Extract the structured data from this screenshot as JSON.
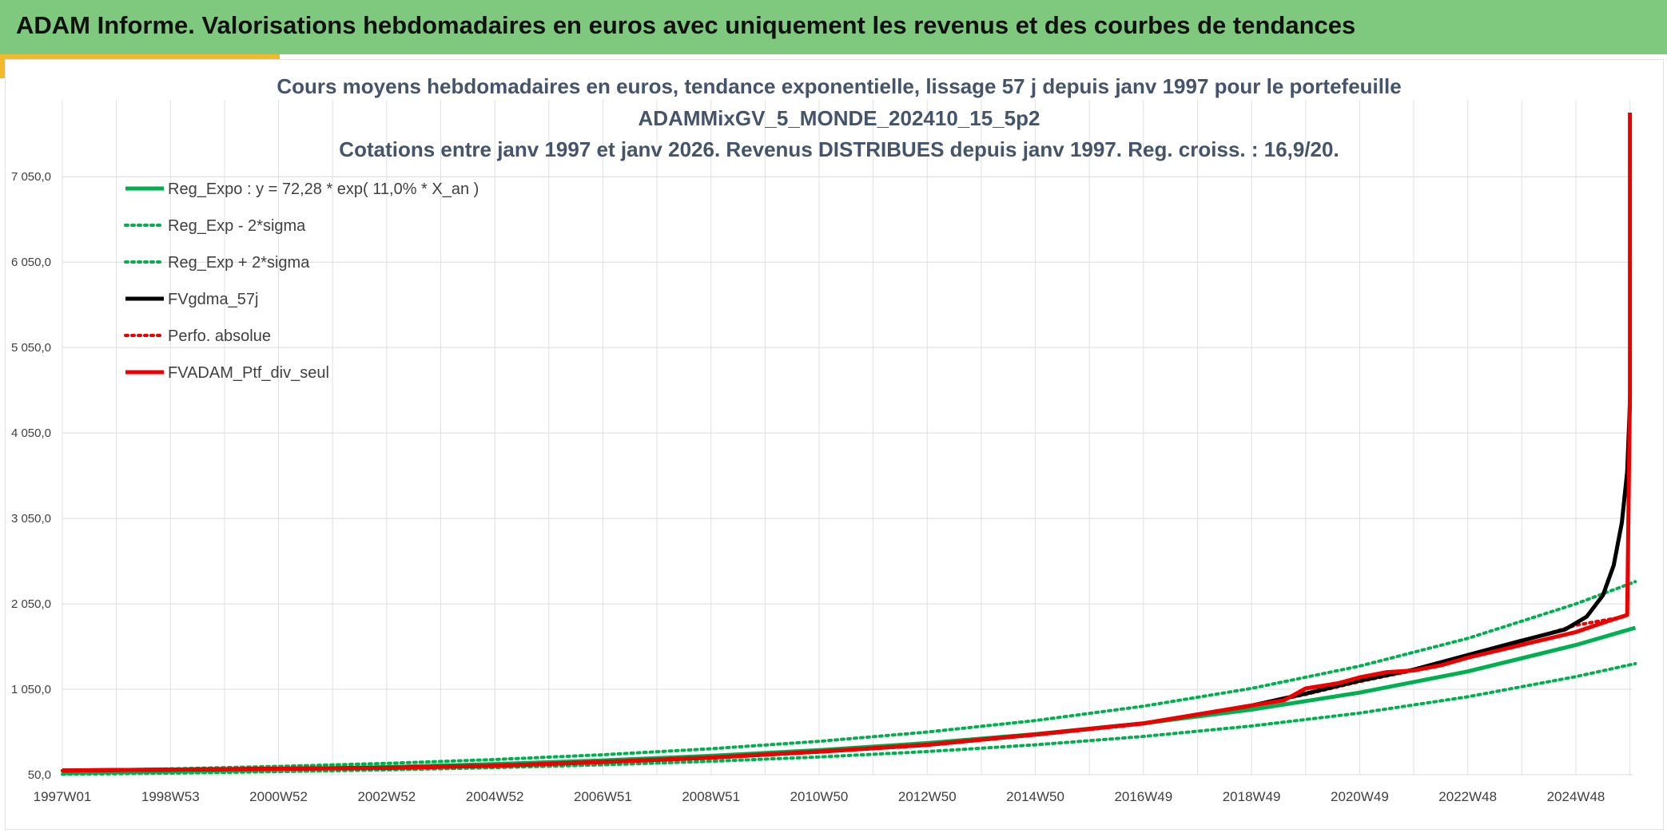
{
  "header": {
    "title": "ADAM Informe. Valorisations hebdomadaires en euros avec uniquement les revenus et des courbes de tendances"
  },
  "colors": {
    "banner": "#7ec97e",
    "accent": "#f2b92b",
    "reg": "#00b050",
    "fvgdma": "#000000",
    "ptf": "#ee0000"
  },
  "chart_data": {
    "type": "line",
    "title_lines": [
      "Cours moyens hebdomadaires en euros, tendance exponentielle, lissage 57 j depuis janv 1997 pour le portefeuille",
      "ADAMMixGV_5_MONDE_202410_15_5p2",
      "Cotations entre janv 1997 et janv 2026. Revenus DISTRIBUES depuis janv 1997. Reg. croiss. : 16,9/20."
    ],
    "xlabel": "",
    "ylabel": "",
    "x_range": [
      1997.0,
      2026.05
    ],
    "ylim": [
      50,
      7800
    ],
    "y_ticks": [
      {
        "v": 50,
        "label": "50,0"
      },
      {
        "v": 1050,
        "label": "1 050,0"
      },
      {
        "v": 2050,
        "label": "2 050,0"
      },
      {
        "v": 3050,
        "label": "3 050,0"
      },
      {
        "v": 4050,
        "label": "4 050,0"
      },
      {
        "v": 5050,
        "label": "5 050,0"
      },
      {
        "v": 6050,
        "label": "6 050,0"
      },
      {
        "v": 7050,
        "label": "7 050,0"
      }
    ],
    "x_ticks": [
      {
        "v": 1997.0,
        "label": "1997W01"
      },
      {
        "v": 1999.0,
        "label": "1998W53"
      },
      {
        "v": 2001.0,
        "label": "2000W52"
      },
      {
        "v": 2003.0,
        "label": "2002W52"
      },
      {
        "v": 2005.0,
        "label": "2004W52"
      },
      {
        "v": 2007.0,
        "label": "2006W51"
      },
      {
        "v": 2009.0,
        "label": "2008W51"
      },
      {
        "v": 2011.0,
        "label": "2010W50"
      },
      {
        "v": 2013.0,
        "label": "2012W50"
      },
      {
        "v": 2015.0,
        "label": "2014W50"
      },
      {
        "v": 2017.0,
        "label": "2016W49"
      },
      {
        "v": 2019.0,
        "label": "2018W49"
      },
      {
        "v": 2021.0,
        "label": "2020W49"
      },
      {
        "v": 2023.0,
        "label": "2022W48"
      },
      {
        "v": 2025.0,
        "label": "2024W48"
      }
    ],
    "grid": true,
    "legend_position": "top-left",
    "series": [
      {
        "name": "Reg_Expo : y = 72,28 * exp( 11,0% *  X_an )",
        "style": "solid",
        "color": "#00b050",
        "x": [
          1997,
          1999,
          2001,
          2003,
          2005,
          2007,
          2009,
          2011,
          2013,
          2015,
          2017,
          2019,
          2021,
          2023,
          2025,
          2026.1
        ],
        "y": [
          72,
          90,
          112,
          140,
          175,
          217,
          271,
          338,
          420,
          524,
          652,
          812,
          1011,
          1259,
          1568,
          1770
        ]
      },
      {
        "name": "Reg_Exp - 2*sigma",
        "style": "dotted",
        "color": "#00b050",
        "x": [
          1997,
          1999,
          2001,
          2003,
          2005,
          2007,
          2009,
          2011,
          2013,
          2015,
          2017,
          2019,
          2021,
          2023,
          2025,
          2026.1
        ],
        "y": [
          55,
          69,
          86,
          107,
          133,
          166,
          207,
          258,
          321,
          400,
          498,
          620,
          772,
          962,
          1198,
          1350
        ]
      },
      {
        "name": "Reg_Exp + 2*sigma",
        "style": "dotted",
        "color": "#00b050",
        "x": [
          1997,
          1999,
          2001,
          2003,
          2005,
          2007,
          2009,
          2011,
          2013,
          2015,
          2017,
          2019,
          2021,
          2023,
          2025,
          2026.1
        ],
        "y": [
          94,
          118,
          147,
          183,
          228,
          284,
          354,
          441,
          549,
          684,
          852,
          1061,
          1321,
          1646,
          2050,
          2310
        ]
      },
      {
        "name": "FVgdma_57j",
        "style": "solid",
        "color": "#000000",
        "x": [
          1997,
          1999,
          2001,
          2003,
          2005,
          2007,
          2009,
          2011,
          2013,
          2015,
          2017,
          2019,
          2020,
          2021,
          2022,
          2023,
          2024,
          2024.8,
          2025.2,
          2025.5,
          2025.7,
          2025.85,
          2025.95,
          2026.0
        ],
        "y": [
          100,
          110,
          120,
          130,
          155,
          200,
          250,
          320,
          400,
          520,
          650,
          860,
          1000,
          1150,
          1280,
          1450,
          1620,
          1750,
          1900,
          2150,
          2500,
          3000,
          3600,
          4400
        ]
      },
      {
        "name": "Perfo. absolue",
        "style": "dotted",
        "color": "#ee0000",
        "x": [
          1997,
          1999,
          2001,
          2003,
          2005,
          2007,
          2009,
          2011,
          2013,
          2015,
          2017,
          2019,
          2020,
          2021,
          2022,
          2023,
          2024,
          2025,
          2025.9
        ],
        "y": [
          98,
          108,
          118,
          128,
          152,
          196,
          246,
          316,
          396,
          515,
          645,
          855,
          990,
          1140,
          1270,
          1440,
          1610,
          1800,
          1900
        ]
      },
      {
        "name": "FVADAM_Ptf_div_seul",
        "style": "solid",
        "color": "#ee0000",
        "x": [
          1997,
          1999,
          2001,
          2003,
          2005,
          2007,
          2009,
          2011,
          2013,
          2015,
          2017,
          2019,
          2019.6,
          2020,
          2020.6,
          2021,
          2021.5,
          2022,
          2022.5,
          2023,
          2024,
          2025,
          2025.6,
          2025.95,
          2026.0,
          2026.0
        ],
        "y": [
          100,
          110,
          120,
          130,
          155,
          200,
          250,
          320,
          400,
          520,
          650,
          860,
          920,
          1060,
          1120,
          1190,
          1250,
          1270,
          1330,
          1420,
          1570,
          1720,
          1850,
          1920,
          4500,
          7800
        ]
      }
    ]
  }
}
